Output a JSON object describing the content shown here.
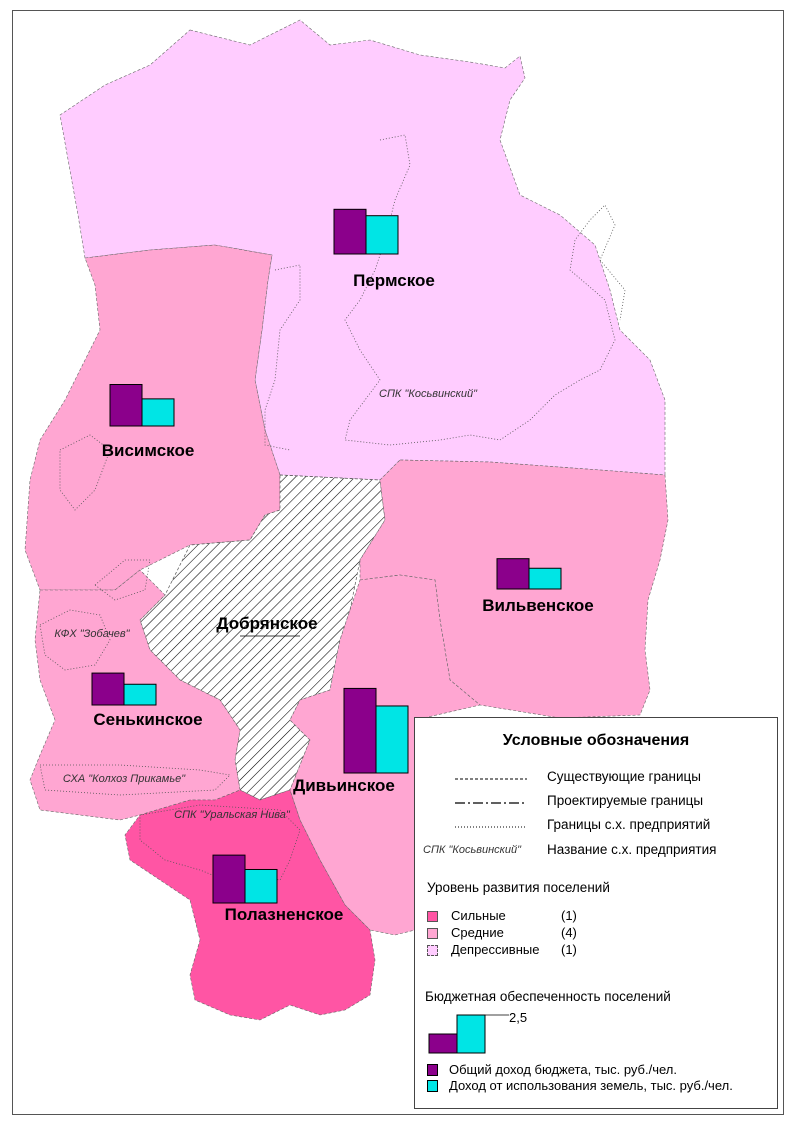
{
  "colors": {
    "strong": "#ff55a4",
    "medium": "#ffa6d2",
    "depressed": "#ffccff",
    "hatched": "#ffffff",
    "bar_total": "#8b008b",
    "bar_land": "#00e5e5"
  },
  "settlements": [
    {
      "name": "Пермское",
      "level": "depressed"
    },
    {
      "name": "Висимское",
      "level": "medium"
    },
    {
      "name": "Вильвенское",
      "level": "medium"
    },
    {
      "name": "Добрянское",
      "level": "hatched"
    },
    {
      "name": "Сенькинское",
      "level": "medium"
    },
    {
      "name": "Дивьинское",
      "level": "medium"
    },
    {
      "name": "Полазненское",
      "level": "strong"
    }
  ],
  "enterprises": [
    {
      "name": "СПК \"Косьвинский\""
    },
    {
      "name": "КФХ \"Зобачев\""
    },
    {
      "name": "СХА \"Колхоз Прикамье\""
    },
    {
      "name": "СПК \"Уральская Нива\""
    }
  ],
  "legend": {
    "title": "Условные обозначения",
    "lines": [
      {
        "label": "Существующие границы",
        "style": "dashed"
      },
      {
        "label": "Проектируемые границы",
        "style": "dash-dot"
      },
      {
        "label": "Границы с.х. предприятий",
        "style": "dotted"
      },
      {
        "label": "Название с.х. предприятия",
        "sample": "СПК \"Косьвинский\""
      }
    ],
    "levels_title": "Уровень развития поселений",
    "levels": [
      {
        "label": "Сильные",
        "count": "(1)",
        "color": "#ff55a4"
      },
      {
        "label": "Средние",
        "count": "(4)",
        "color": "#ffa6d2"
      },
      {
        "label": "Депрессивные",
        "count": "(1)",
        "color": "#ffccff"
      }
    ],
    "budget_title": "Бюджетная обеспеченность поселений",
    "scale_value": "2,5",
    "bars": [
      {
        "label": "Общий доход бюджета, тыс. руб./чел.",
        "color": "#8b008b"
      },
      {
        "label": "Доход от использования земель, тыс. руб./чел.",
        "color": "#00e5e5"
      }
    ]
  },
  "chart_data": {
    "type": "bar",
    "categories": [
      "Пермское",
      "Висимское",
      "Вильвенское",
      "Сенькинское",
      "Дивьинское",
      "Полазненское"
    ],
    "series": [
      {
        "name": "Общий доход бюджета, тыс. руб./чел.",
        "values": [
          2.8,
          2.6,
          1.9,
          2.0,
          5.3,
          3.0
        ]
      },
      {
        "name": "Доход от использования земель, тыс. руб./чел.",
        "values": [
          2.4,
          1.7,
          1.3,
          1.3,
          4.2,
          2.1
        ]
      }
    ],
    "scale_reference": 2.5
  }
}
